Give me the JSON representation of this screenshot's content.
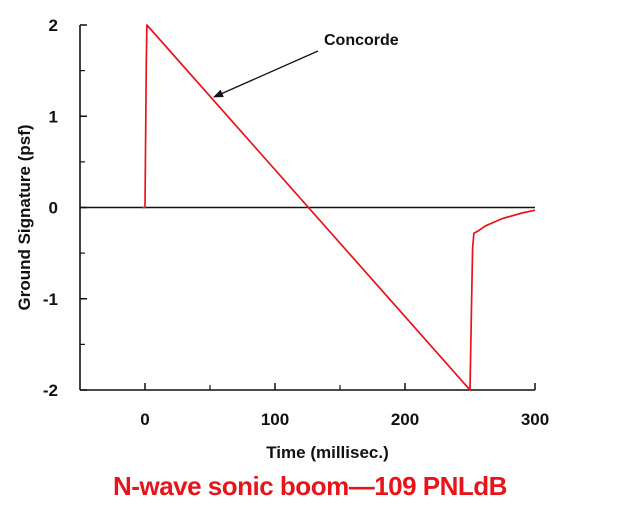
{
  "colors": {
    "series": "#e8141c",
    "axis": "#111111",
    "caption": "#e8141c"
  },
  "caption": "N-wave sonic boom—109 PNLdB",
  "chart_data": {
    "type": "line",
    "title": "",
    "xlabel": "Time (millisec.)",
    "ylabel": "Ground Signature (psf)",
    "xlim": [
      -50,
      300
    ],
    "ylim": [
      -2,
      2
    ],
    "grid": false,
    "x_ticks": [
      0,
      100,
      200,
      300
    ],
    "x_tick_labels": [
      "0",
      "100",
      "200",
      "300"
    ],
    "y_ticks": [
      2,
      1,
      0,
      -1,
      -2
    ],
    "y_tick_labels": [
      "2",
      "1",
      "0",
      "-1",
      "-2"
    ],
    "series": [
      {
        "name": "Concorde",
        "x": [
          -2,
          0,
          1,
          1.5,
          250,
          251,
          252,
          253,
          256,
          262,
          275,
          290,
          300
        ],
        "y": [
          0,
          0,
          1.6,
          2.0,
          -2.0,
          -1.2,
          -0.45,
          -0.28,
          -0.26,
          -0.2,
          -0.12,
          -0.06,
          -0.03
        ]
      }
    ],
    "annotations": [
      {
        "text": "Concorde",
        "x": 50,
        "y": 1.2
      }
    ]
  }
}
